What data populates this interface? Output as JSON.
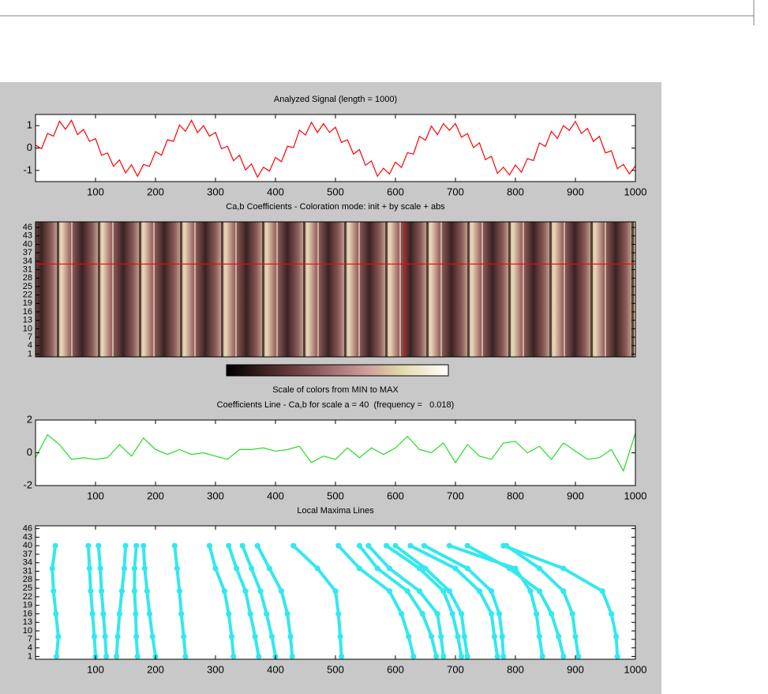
{
  "chart_data": [
    {
      "type": "line",
      "title": "Analyzed Signal (length = 1000)",
      "color": "#ff0000",
      "x": [
        0,
        10,
        20,
        30,
        40,
        50,
        60,
        70,
        80,
        90,
        100,
        110,
        120,
        130,
        140,
        150,
        160,
        170,
        180,
        190,
        200,
        210,
        220,
        230,
        240,
        250,
        260,
        270,
        280,
        290,
        300,
        310,
        320,
        330,
        340,
        350,
        360,
        370,
        380,
        390,
        400,
        410,
        420,
        430,
        440,
        450,
        460,
        470,
        480,
        490,
        500,
        510,
        520,
        530,
        540,
        550,
        560,
        570,
        580,
        590,
        600,
        610,
        620,
        630,
        640,
        650,
        660,
        670,
        680,
        690,
        700,
        710,
        720,
        730,
        740,
        750,
        760,
        770,
        780,
        790,
        800,
        810,
        820,
        830,
        840,
        850,
        860,
        870,
        880,
        890,
        900,
        910,
        920,
        930,
        940,
        950,
        960,
        970,
        980,
        990,
        1000
      ],
      "values": [
        0.13,
        -0.03,
        0.65,
        0.53,
        1.2,
        0.84,
        1.24,
        0.6,
        0.83,
        0.3,
        0.42,
        -0.32,
        -0.22,
        -0.82,
        -0.53,
        -1.11,
        -0.75,
        -1.26,
        -0.73,
        -0.82,
        -0.16,
        -0.32,
        0.37,
        0.3,
        1.03,
        0.75,
        1.24,
        0.69,
        1.0,
        0.53,
        0.7,
        -0.03,
        0.08,
        -0.57,
        -0.32,
        -0.98,
        -0.71,
        -1.3,
        -0.86,
        -1.03,
        -0.42,
        -0.61,
        0.08,
        0.02,
        0.8,
        0.58,
        1.15,
        0.69,
        1.09,
        0.7,
        0.93,
        0.25,
        0.37,
        -0.27,
        -0.07,
        -0.77,
        -0.58,
        -1.26,
        -0.9,
        -1.16,
        -0.63,
        -0.87,
        -0.21,
        -0.27,
        0.52,
        0.35,
        0.98,
        0.6,
        1.09,
        0.79,
        1.1,
        0.48,
        0.65,
        0.02,
        0.23,
        -0.52,
        -0.37,
        -1.13,
        -0.86,
        -1.2,
        -0.76,
        -1.08,
        -0.47,
        -0.56,
        0.23,
        0.07,
        0.75,
        0.43,
        1.0,
        0.79,
        1.19,
        0.65,
        0.88,
        0.3,
        0.52,
        -0.22,
        -0.12,
        -0.92,
        -0.73,
        -1.16,
        -0.8
      ],
      "xlim": [
        0,
        1000
      ],
      "ylim": [
        -1.5,
        1.5
      ],
      "xticks": [
        100,
        200,
        300,
        400,
        500,
        600,
        700,
        800,
        900,
        1000
      ],
      "yticks": [
        -1,
        0,
        1
      ]
    },
    {
      "type": "heatmap",
      "title": "Ca,b Coefficients - Coloration mode: init + by scale + abs",
      "xlim": [
        0,
        1000
      ],
      "ylim": [
        0,
        48
      ],
      "yticks": [
        1,
        4,
        7,
        10,
        13,
        16,
        19,
        22,
        25,
        28,
        31,
        34,
        37,
        40,
        43,
        46
      ],
      "crosshair": {
        "x": 615,
        "y": 33
      },
      "crosshair_color": "#ff0000",
      "colorbar_label": "Scale of colors from MIN to MAX"
    },
    {
      "type": "line",
      "title": "Coefficients Line - Ca,b for scale a = 40  (frequency =   0.018)",
      "color": "#22dd22",
      "x": [
        0,
        20,
        40,
        60,
        80,
        100,
        120,
        140,
        160,
        180,
        200,
        220,
        240,
        260,
        280,
        300,
        320,
        340,
        360,
        380,
        400,
        420,
        440,
        460,
        480,
        500,
        520,
        540,
        560,
        580,
        600,
        620,
        640,
        660,
        680,
        700,
        720,
        740,
        760,
        780,
        800,
        820,
        840,
        860,
        880,
        900,
        920,
        940,
        960,
        980,
        1000
      ],
      "values": [
        -0.3,
        1.1,
        0.5,
        -0.4,
        -0.3,
        -0.4,
        -0.3,
        0.5,
        -0.2,
        0.9,
        0.2,
        -0.1,
        0.2,
        -0.1,
        0.0,
        -0.2,
        -0.4,
        0.2,
        0.2,
        0.3,
        0.1,
        0.2,
        0.4,
        -0.6,
        -0.2,
        -0.4,
        0.3,
        -0.3,
        0.3,
        -0.1,
        0.3,
        1.0,
        0.2,
        0.0,
        0.6,
        -0.6,
        0.5,
        -0.2,
        -0.4,
        0.6,
        0.7,
        0.0,
        0.4,
        -0.4,
        0.6,
        0.1,
        -0.4,
        -0.3,
        0.2,
        -1.1,
        1.2
      ],
      "xlim": [
        0,
        1000
      ],
      "ylim": [
        -2,
        2
      ],
      "xticks": [
        100,
        200,
        300,
        400,
        500,
        600,
        700,
        800,
        900,
        1000
      ],
      "yticks": [
        -2,
        0,
        2
      ]
    },
    {
      "type": "maxima",
      "title": "Local Maxima Lines",
      "color": "#33e8ee",
      "scales": [
        1,
        8,
        16,
        24,
        32,
        40
      ],
      "lines": [
        [
          35,
          38,
          34,
          30,
          28,
          33
        ],
        [
          100,
          98,
          95,
          92,
          90,
          88
        ],
        [
          118,
          116,
          113,
          110,
          108,
          105
        ],
        [
          135,
          137,
          140,
          144,
          148,
          150
        ],
        [
          170,
          168,
          167,
          165,
          165,
          168
        ],
        [
          200,
          195,
          190,
          186,
          182,
          180
        ],
        [
          250,
          247,
          243,
          240,
          236,
          232
        ],
        [
          330,
          327,
          322,
          315,
          300,
          290
        ],
        [
          372,
          366,
          358,
          350,
          335,
          322
        ],
        [
          400,
          394,
          385,
          375,
          360,
          345
        ],
        [
          428,
          425,
          420,
          410,
          390,
          370
        ],
        [
          510,
          508,
          505,
          500,
          470,
          430
        ],
        [
          630,
          622,
          610,
          590,
          540,
          505
        ],
        [
          668,
          660,
          645,
          620,
          570,
          540
        ],
        [
          680,
          676,
          670,
          640,
          590,
          555
        ],
        [
          710,
          704,
          695,
          680,
          640,
          585
        ],
        [
          720,
          715,
          710,
          690,
          650,
          600
        ],
        [
          770,
          765,
          760,
          740,
          700,
          625
        ],
        [
          780,
          778,
          773,
          760,
          720,
          648
        ],
        [
          845,
          840,
          835,
          825,
          800,
          690
        ],
        [
          880,
          872,
          860,
          840,
          790,
          720
        ],
        [
          905,
          900,
          895,
          880,
          840,
          785
        ],
        [
          970,
          968,
          960,
          945,
          880,
          780
        ]
      ],
      "xlim": [
        0,
        1000
      ],
      "ylim": [
        0,
        47
      ],
      "xticks": [
        100,
        200,
        300,
        400,
        500,
        600,
        700,
        800,
        900,
        1000
      ],
      "yticks": [
        1,
        4,
        7,
        10,
        13,
        16,
        19,
        22,
        25,
        28,
        31,
        34,
        37,
        40,
        43,
        46
      ]
    }
  ]
}
